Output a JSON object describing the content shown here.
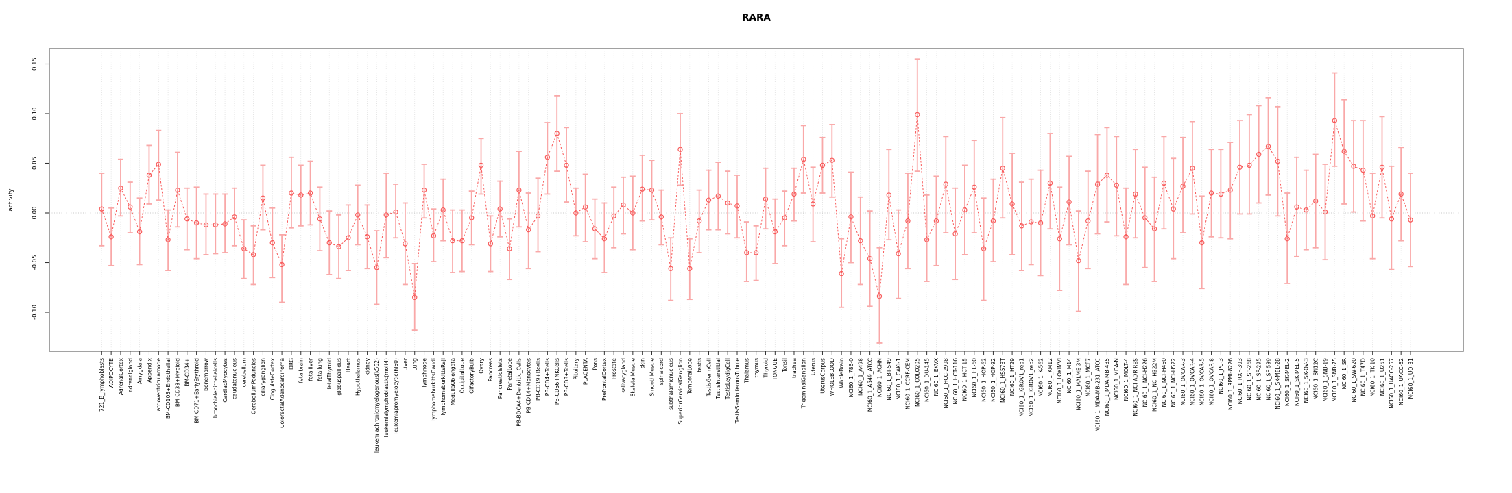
{
  "chart_data": {
    "type": "scatter",
    "title": "RARA",
    "ylabel": "activity",
    "xlabel": "",
    "ylim": [
      -0.142,
      0.166
    ],
    "grid": "vertical-dotted",
    "zero_line": true,
    "legend": "none",
    "colors": {
      "point": "#f85a5a",
      "series_line": "#f85a5a",
      "error_bar": "#f9a8a8",
      "grid_line": "#dcdcdc",
      "zero_line": "#c8c8c8",
      "box": "#8a8a8a",
      "tick": "#333333",
      "text": "#000000"
    },
    "yticks": [
      {
        "label": "0.15",
        "value": 0.15
      },
      {
        "label": "0.10",
        "value": 0.1
      },
      {
        "label": "0.05",
        "value": 0.05
      },
      {
        "label": "0.00",
        "value": 0.0
      },
      {
        "label": "-0.05",
        "value": -0.05
      },
      {
        "label": "-0.10",
        "value": -0.1
      }
    ],
    "categories": [
      "721_B_lymphoblasts",
      "ADIPOCYTE",
      "AdrenalCortex",
      "adrenalgland",
      "Amygdala",
      "Appendix",
      "atrioventricularnode",
      "BM-CD105+Endothelial",
      "BM-CD33+Myeloid",
      "BM-CD34+",
      "BM-CD71+EarlyErythroid",
      "bonemarrow",
      "bronchialepithelialcells",
      "CardiacMyocytes",
      "caudatenucleus",
      "cerebellum",
      "CerebellumPeduncles",
      "ciliaryganglion",
      "CingulateCortex",
      "ColorectalAdenocarcinoma",
      "DRG",
      "fetalbrain",
      "fetalliver",
      "fetallung",
      "fetalThyroid",
      "globuspallidus",
      "Heart",
      "Hypothalamus",
      "kidney",
      "leukemiachronicmyelogenous(k562)",
      "leukemialymphoblastic(molt4)",
      "leukemiapromyelocytic(hl60)",
      "Liver",
      "Lung",
      "lymphnode",
      "lymphomaburkittsDaudi",
      "lymphomaburkittsRaji",
      "MedullaOblongata",
      "OccipitalLobe",
      "OlfactoryBulb",
      "Ovary",
      "Pancreas",
      "Pancreaticislets",
      "ParietalLobe",
      "PB-BDCA4+Dentritic_Cells",
      "PB-CD14+Monocytes",
      "PB-CD19+Bcells",
      "PB-CD4+Tcells",
      "PB-CD56+NKCells",
      "PB-CD8+Tcells",
      "Pituitary",
      "PLACENTA",
      "Pons",
      "PrefrontalCortex",
      "Prostate",
      "salivarygland",
      "SkeletalMuscle",
      "skin",
      "SmoothMuscle",
      "spinalcord",
      "subthalamicnucleus",
      "SuperiorCervicalGanglion",
      "TemporalLobe",
      "testis",
      "TestisGermCell",
      "TestisInterstitial",
      "TestisLeydigCell",
      "TestisSeminiferousTubule",
      "Thalamus",
      "thymus",
      "Thyroid",
      "TONGUE",
      "Tonsil",
      "trachea",
      "TrigeminalGanglion",
      "Uterus",
      "UterusCorpus",
      "WHOLEBLOOD",
      "WholeBrain",
      "NCI60_1_786-0",
      "NCI60_1_A498",
      "NCI60_1_A549_ATCC",
      "NCI60_1_ACHN",
      "NCI60_1_BT-549",
      "NCI60_1_CAKI-1",
      "NCI60_1_CCRF-CEM",
      "NCI60_1_COLO205",
      "NCI60_1_DU-145",
      "NCI60_1_EKVX",
      "NCI60_1_HCC-2998",
      "NCI60_1_HCT-116",
      "NCI60_1_HCT-15",
      "NCI60_1_HL-60",
      "NCI60_1_HOP-62",
      "NCI60_1_HOP-92",
      "NCI60_1_HS578T",
      "NCI60_1_HT29",
      "NCI60_1_IGROV1_rep1",
      "NCI60_1_IGROV1_rep2",
      "NCI60_1_K-562",
      "NCI60_1_KM12",
      "NCI60_1_LOXIMVI",
      "NCI60_1_M14",
      "NCI60_1_MALME-3M",
      "NCI60_1_MCF7",
      "NCI60_1_MDA-MB-231_ATCC",
      "NCI60_1_MDA-MB-435",
      "NCI60_1_MDA-N",
      "NCI60_1_MOLT-4",
      "NCI60_1_NCI-ADR-RES",
      "NCI60_1_NCI-H226",
      "NCI60_1_NCI-H322M",
      "NCI60_1_NCI-H460",
      "NCI60_1_NCI-H522",
      "NCI60_1_OVCAR-3",
      "NCI60_1_OVCAR-4",
      "NCI60_1_OVCAR-5",
      "NCI60_1_OVCAR-8",
      "NCI60_1_PC-3",
      "NCI60_1_RPMI-8226",
      "NCI60_1_RXF-393",
      "NCI60_1_SF-268",
      "NCI60_1_SF-295",
      "NCI60_1_SF-539",
      "NCI60_1_SK-MEL-28",
      "NCI60_1_SK-MEL-2",
      "NCI60_1_SK-MEL-5",
      "NCI60_1_SK-OV-3",
      "NCI60_1_SN12C",
      "NCI60_1_SNB-19",
      "NCI60_1_SNB-75",
      "NCI60_1_SR",
      "NCI60_1_SW-620",
      "NCI60_1_T47D",
      "NCI60_1_TK-10",
      "NCI60_1_U251",
      "NCI60_1_UACC-257",
      "NCI60_1_UACC-62",
      "NCI60_1_UO-31"
    ],
    "series": [
      {
        "name": "activity",
        "values": [
          0.004,
          -0.024,
          0.025,
          0.006,
          -0.019,
          0.038,
          0.049,
          -0.027,
          0.023,
          -0.006,
          -0.01,
          -0.012,
          -0.012,
          -0.011,
          -0.004,
          -0.036,
          -0.042,
          0.015,
          -0.03,
          -0.052,
          0.02,
          0.018,
          0.02,
          -0.006,
          -0.03,
          -0.034,
          -0.025,
          -0.002,
          -0.024,
          -0.055,
          -0.002,
          0.001,
          -0.031,
          -0.085,
          0.023,
          -0.023,
          0.003,
          -0.028,
          -0.028,
          -0.005,
          0.048,
          -0.031,
          0.004,
          -0.036,
          0.023,
          -0.017,
          -0.003,
          0.056,
          0.08,
          0.048,
          0.0,
          0.006,
          -0.016,
          -0.026,
          -0.003,
          0.008,
          0.0,
          0.024,
          0.023,
          -0.004,
          -0.056,
          0.064,
          -0.056,
          -0.008,
          0.013,
          0.017,
          0.01,
          0.007,
          -0.04,
          -0.04,
          0.014,
          -0.019,
          -0.005,
          0.019,
          0.054,
          0.009,
          0.048,
          0.053,
          -0.061,
          -0.004,
          -0.028,
          -0.046,
          -0.084,
          0.018,
          -0.041,
          -0.008,
          0.099,
          -0.027,
          -0.008,
          0.029,
          -0.021,
          0.003,
          0.026,
          -0.036,
          -0.008,
          0.045,
          0.009,
          -0.013,
          -0.009,
          -0.01,
          0.03,
          -0.026,
          0.011,
          -0.048,
          -0.008,
          0.029,
          0.038,
          0.028,
          -0.024,
          0.019,
          -0.005,
          -0.016,
          0.03,
          0.004,
          0.027,
          0.045,
          -0.03,
          0.02,
          0.019,
          0.023,
          0.046,
          0.048,
          0.059,
          0.067,
          0.052,
          -0.026,
          0.006,
          0.003,
          0.012,
          0.001,
          0.093,
          0.062,
          0.047,
          0.043,
          -0.003,
          0.046,
          -0.006,
          0.019,
          -0.007
        ],
        "lower": [
          -0.033,
          -0.053,
          -0.003,
          -0.02,
          -0.052,
          0.009,
          0.013,
          -0.058,
          -0.014,
          -0.037,
          -0.046,
          -0.042,
          -0.041,
          -0.04,
          -0.033,
          -0.066,
          -0.072,
          -0.017,
          -0.065,
          -0.09,
          -0.015,
          -0.013,
          -0.012,
          -0.038,
          -0.062,
          -0.066,
          -0.058,
          -0.032,
          -0.056,
          -0.092,
          -0.045,
          -0.025,
          -0.072,
          -0.118,
          -0.005,
          -0.049,
          -0.028,
          -0.06,
          -0.059,
          -0.032,
          0.019,
          -0.059,
          -0.024,
          -0.067,
          -0.014,
          -0.056,
          -0.039,
          0.019,
          0.042,
          0.011,
          -0.023,
          -0.029,
          -0.046,
          -0.06,
          -0.035,
          -0.021,
          -0.037,
          -0.008,
          -0.007,
          -0.032,
          -0.088,
          0.028,
          -0.087,
          -0.04,
          -0.017,
          -0.017,
          -0.021,
          -0.025,
          -0.069,
          -0.068,
          -0.016,
          -0.051,
          -0.033,
          -0.008,
          0.02,
          -0.029,
          0.02,
          0.016,
          -0.095,
          -0.05,
          -0.072,
          -0.094,
          -0.131,
          -0.027,
          -0.086,
          -0.056,
          0.042,
          -0.069,
          -0.053,
          -0.02,
          -0.067,
          -0.042,
          -0.02,
          -0.088,
          -0.049,
          -0.005,
          -0.042,
          -0.058,
          -0.052,
          -0.063,
          -0.016,
          -0.078,
          -0.032,
          -0.099,
          -0.056,
          -0.021,
          -0.009,
          -0.023,
          -0.072,
          -0.025,
          -0.055,
          -0.069,
          -0.016,
          -0.046,
          -0.02,
          -0.001,
          -0.076,
          -0.024,
          -0.025,
          -0.026,
          -0.001,
          -0.001,
          0.01,
          0.018,
          -0.003,
          -0.071,
          -0.044,
          -0.037,
          -0.035,
          -0.047,
          0.047,
          0.009,
          0.001,
          -0.008,
          -0.046,
          -0.005,
          -0.057,
          -0.028,
          -0.054
        ],
        "upper": [
          0.04,
          0.005,
          0.054,
          0.031,
          0.015,
          0.068,
          0.083,
          0.003,
          0.061,
          0.025,
          0.026,
          0.019,
          0.019,
          0.019,
          0.025,
          -0.007,
          -0.013,
          0.048,
          0.005,
          -0.022,
          0.056,
          0.048,
          0.052,
          0.026,
          0.002,
          -0.002,
          0.008,
          0.028,
          0.008,
          -0.018,
          0.04,
          0.029,
          0.01,
          -0.051,
          0.049,
          0.004,
          0.034,
          0.003,
          0.003,
          0.022,
          0.075,
          -0.003,
          0.032,
          -0.006,
          0.062,
          0.02,
          0.035,
          0.091,
          0.118,
          0.086,
          0.025,
          0.039,
          0.014,
          0.01,
          0.026,
          0.036,
          0.037,
          0.058,
          0.053,
          0.023,
          -0.025,
          0.1,
          -0.026,
          0.023,
          0.043,
          0.051,
          0.042,
          0.038,
          -0.009,
          -0.013,
          0.045,
          0.014,
          0.022,
          0.045,
          0.088,
          0.046,
          0.076,
          0.089,
          -0.026,
          0.041,
          0.016,
          0.002,
          -0.035,
          0.064,
          0.003,
          0.04,
          0.155,
          0.018,
          0.037,
          0.077,
          0.025,
          0.048,
          0.073,
          0.015,
          0.034,
          0.096,
          0.06,
          0.031,
          0.034,
          0.043,
          0.08,
          0.026,
          0.057,
          0.002,
          0.042,
          0.079,
          0.086,
          0.077,
          0.025,
          0.064,
          0.046,
          0.036,
          0.077,
          0.055,
          0.076,
          0.092,
          0.017,
          0.064,
          0.064,
          0.071,
          0.093,
          0.099,
          0.108,
          0.116,
          0.107,
          0.02,
          0.056,
          0.043,
          0.059,
          0.049,
          0.141,
          0.114,
          0.093,
          0.093,
          0.04,
          0.097,
          0.047,
          0.066,
          0.04
        ]
      }
    ]
  }
}
